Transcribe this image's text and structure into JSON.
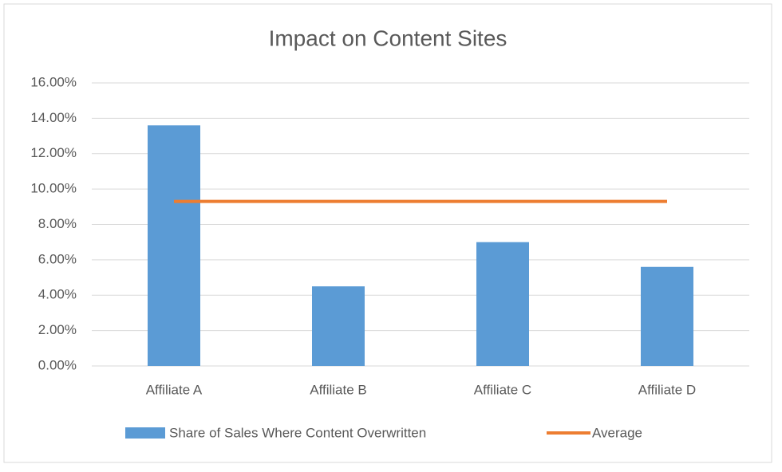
{
  "chart_data": {
    "type": "bar",
    "title": "Impact on Content Sites",
    "categories": [
      "Affiliate A",
      "Affiliate B",
      "Affiliate C",
      "Affiliate D"
    ],
    "series": [
      {
        "name": "Share of Sales Where Content Overwritten",
        "type": "bar",
        "color": "#5b9bd5",
        "values": [
          13.6,
          4.5,
          7.0,
          5.6
        ]
      },
      {
        "name": "Average",
        "type": "line",
        "color": "#ed7d31",
        "values": [
          9.3,
          9.3,
          9.3,
          9.3
        ]
      }
    ],
    "ylim": [
      0,
      16
    ],
    "yticks": [
      {
        "value": 0,
        "label": "0.00%"
      },
      {
        "value": 2,
        "label": "2.00%"
      },
      {
        "value": 4,
        "label": "4.00%"
      },
      {
        "value": 6,
        "label": "6.00%"
      },
      {
        "value": 8,
        "label": "8.00%"
      },
      {
        "value": 10,
        "label": "10.00%"
      },
      {
        "value": 12,
        "label": "12.00%"
      },
      {
        "value": 14,
        "label": "14.00%"
      },
      {
        "value": 16,
        "label": "16.00%"
      }
    ],
    "grid": true,
    "legend": "bottom"
  }
}
